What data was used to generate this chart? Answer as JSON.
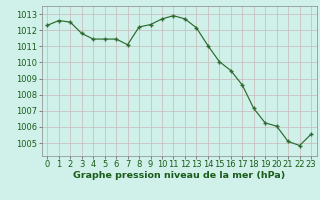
{
  "x": [
    0,
    1,
    2,
    3,
    4,
    5,
    6,
    7,
    8,
    9,
    10,
    11,
    12,
    13,
    14,
    15,
    16,
    17,
    18,
    19,
    20,
    21,
    22,
    23
  ],
  "y": [
    1012.3,
    1012.6,
    1012.5,
    1011.8,
    1011.45,
    1011.45,
    1011.45,
    1011.1,
    1012.2,
    1012.35,
    1012.7,
    1012.9,
    1012.7,
    1012.15,
    1011.05,
    1010.05,
    1009.5,
    1008.6,
    1007.15,
    1006.25,
    1006.05,
    1005.1,
    1004.85,
    1005.55
  ],
  "line_color": "#2d6a2d",
  "marker_color": "#2d6a2d",
  "bg_color": "#d0f0ea",
  "grid_color_v": "#c8b8b8",
  "grid_color_h": "#c8b8b8",
  "ylabel_ticks": [
    1005,
    1006,
    1007,
    1008,
    1009,
    1010,
    1011,
    1012,
    1013
  ],
  "ylim": [
    1004.2,
    1013.5
  ],
  "xlim": [
    -0.5,
    23.5
  ],
  "xlabel": "Graphe pression niveau de la mer (hPa)",
  "xlabel_fontsize": 6.8,
  "tick_fontsize": 6.0,
  "label_color": "#1a5c1a"
}
